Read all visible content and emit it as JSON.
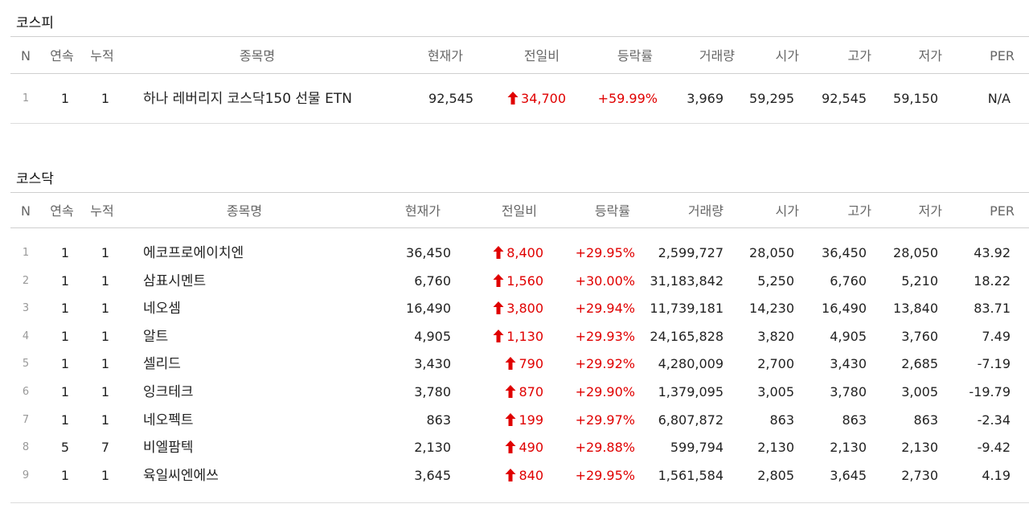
{
  "headers": {
    "n": "N",
    "streak": "연속",
    "cumulative": "누적",
    "name": "종목명",
    "price": "현재가",
    "change": "전일비",
    "rate": "등락률",
    "volume": "거래량",
    "open": "시가",
    "high": "고가",
    "low": "저가",
    "per": "PER"
  },
  "icons": {
    "up": "up-arrow-icon",
    "up_color": "#e00000"
  },
  "kospi": {
    "title": "코스피",
    "rows": [
      {
        "n": "1",
        "streak": "1",
        "cumulative": "1",
        "name": "하나 레버리지 코스닥150 선물 ETN",
        "price": "92,545",
        "change": "34,700",
        "rate": "+59.99%",
        "volume": "3,969",
        "open": "59,295",
        "high": "92,545",
        "low": "59,150",
        "per": "N/A"
      }
    ]
  },
  "kosdaq": {
    "title": "코스닥",
    "rows": [
      {
        "n": "1",
        "streak": "1",
        "cumulative": "1",
        "name": "에코프로에이치엔",
        "price": "36,450",
        "change": "8,400",
        "rate": "+29.95%",
        "volume": "2,599,727",
        "open": "28,050",
        "high": "36,450",
        "low": "28,050",
        "per": "43.92"
      },
      {
        "n": "2",
        "streak": "1",
        "cumulative": "1",
        "name": "삼표시멘트",
        "price": "6,760",
        "change": "1,560",
        "rate": "+30.00%",
        "volume": "31,183,842",
        "open": "5,250",
        "high": "6,760",
        "low": "5,210",
        "per": "18.22"
      },
      {
        "n": "3",
        "streak": "1",
        "cumulative": "1",
        "name": "네오셈",
        "price": "16,490",
        "change": "3,800",
        "rate": "+29.94%",
        "volume": "11,739,181",
        "open": "14,230",
        "high": "16,490",
        "low": "13,840",
        "per": "83.71"
      },
      {
        "n": "4",
        "streak": "1",
        "cumulative": "1",
        "name": "알트",
        "price": "4,905",
        "change": "1,130",
        "rate": "+29.93%",
        "volume": "24,165,828",
        "open": "3,820",
        "high": "4,905",
        "low": "3,760",
        "per": "7.49"
      },
      {
        "n": "5",
        "streak": "1",
        "cumulative": "1",
        "name": "셀리드",
        "price": "3,430",
        "change": "790",
        "rate": "+29.92%",
        "volume": "4,280,009",
        "open": "2,700",
        "high": "3,430",
        "low": "2,685",
        "per": "-7.19"
      },
      {
        "n": "6",
        "streak": "1",
        "cumulative": "1",
        "name": "잉크테크",
        "price": "3,780",
        "change": "870",
        "rate": "+29.90%",
        "volume": "1,379,095",
        "open": "3,005",
        "high": "3,780",
        "low": "3,005",
        "per": "-19.79"
      },
      {
        "n": "7",
        "streak": "1",
        "cumulative": "1",
        "name": "네오펙트",
        "price": "863",
        "change": "199",
        "rate": "+29.97%",
        "volume": "6,807,872",
        "open": "863",
        "high": "863",
        "low": "863",
        "per": "-2.34"
      },
      {
        "n": "8",
        "streak": "5",
        "cumulative": "7",
        "name": "비엘팜텍",
        "price": "2,130",
        "change": "490",
        "rate": "+29.88%",
        "volume": "599,794",
        "open": "2,130",
        "high": "2,130",
        "low": "2,130",
        "per": "-9.42"
      },
      {
        "n": "9",
        "streak": "1",
        "cumulative": "1",
        "name": "육일씨엔에쓰",
        "price": "3,645",
        "change": "840",
        "rate": "+29.95%",
        "volume": "1,561,584",
        "open": "2,805",
        "high": "3,645",
        "low": "2,730",
        "per": "4.19"
      }
    ]
  }
}
